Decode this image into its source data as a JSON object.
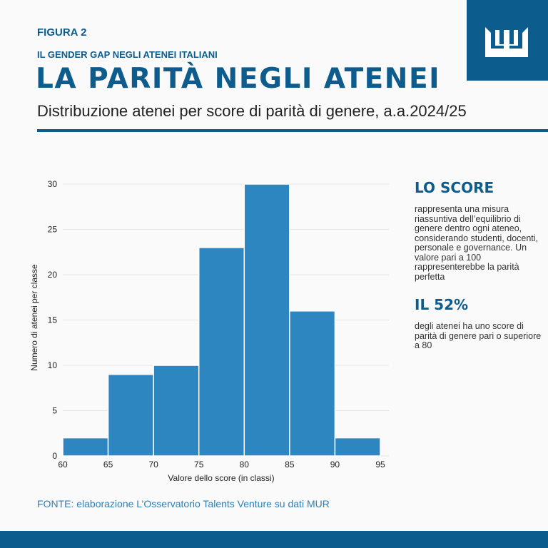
{
  "header": {
    "figure": "FIGURA 2",
    "subtitle": "IL GENDER GAP NEGLI ATENEI ITALIANI",
    "title": "LA PARITÀ NEGLI ATENEI",
    "description": "Distribuzione atenei per score di parità di genere, a.a.2024/25"
  },
  "sidebar": {
    "score_title": "LO SCORE",
    "score_text": "rappresenta una misura riassuntiva dell’equilibrio di genere dentro ogni ateneo, considerando studenti, docenti, personale e governance. Un valore pari a 100 rappresenterebbe la parità perfetta",
    "stat_title": "IL 52%",
    "stat_text": "degli atenei ha uno score di parità di genere pari o superiore a 80"
  },
  "footer": {
    "source": "FONTE: elaborazione L’Osservatorio Talents Venture su dati MUR"
  },
  "colors": {
    "brand": "#0d5c8e",
    "bar": "#2e86c1"
  },
  "chart_data": {
    "type": "bar",
    "title": "",
    "xlabel": "Valore dello score (in classi)",
    "ylabel": "Numero di atenei per classe",
    "bins": [
      [
        60,
        65
      ],
      [
        65,
        70
      ],
      [
        70,
        75
      ],
      [
        75,
        80
      ],
      [
        80,
        85
      ],
      [
        85,
        90
      ],
      [
        90,
        95
      ]
    ],
    "values": [
      2,
      9,
      10,
      23,
      30,
      16,
      2
    ],
    "xticks": [
      60,
      65,
      70,
      75,
      80,
      85,
      90,
      95
    ],
    "yticks": [
      0,
      5,
      10,
      15,
      20,
      25,
      30
    ],
    "xlim": [
      60,
      95
    ],
    "ylim": [
      0,
      30
    ],
    "grid": "horizontal"
  }
}
